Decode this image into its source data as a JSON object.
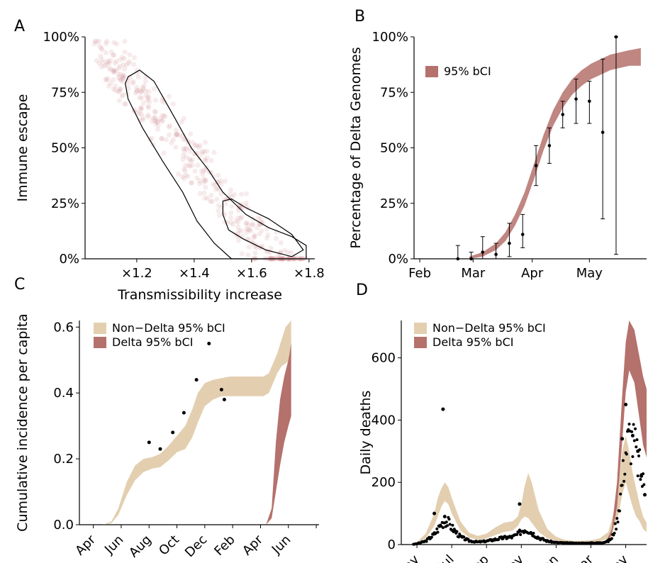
{
  "colors": {
    "delta": "#b5716c",
    "non_delta": "#e3cfb0",
    "points": "#000000",
    "scatter": "#c98088",
    "contour": "#000000"
  },
  "chart_data": [
    {
      "panel": "A",
      "type": "scatter",
      "xlabel": "Transmissibility increase",
      "ylabel": "Immune escape",
      "xlim": [
        1.02,
        1.82
      ],
      "ylim": [
        0,
        1
      ],
      "x_ticks": [
        1.2,
        1.4,
        1.6,
        1.8
      ],
      "x_tick_labels": [
        "×1.2",
        "×1.4",
        "×1.6",
        "×1.8"
      ],
      "y_ticks": [
        0,
        0.25,
        0.5,
        0.75,
        1
      ],
      "y_tick_labels": [
        "0%",
        "25%",
        "50%",
        "75%",
        "100%"
      ],
      "contour_outer": [
        [
          1.17,
          0.82
        ],
        [
          1.21,
          0.85
        ],
        [
          1.26,
          0.8
        ],
        [
          1.33,
          0.64
        ],
        [
          1.39,
          0.5
        ],
        [
          1.45,
          0.4
        ],
        [
          1.5,
          0.3
        ],
        [
          1.58,
          0.2
        ],
        [
          1.66,
          0.14
        ],
        [
          1.74,
          0.1
        ],
        [
          1.79,
          0.06
        ],
        [
          1.79,
          0.0
        ],
        [
          1.62,
          0.0
        ],
        [
          1.53,
          0.0
        ],
        [
          1.47,
          0.07
        ],
        [
          1.41,
          0.17
        ],
        [
          1.36,
          0.3
        ],
        [
          1.29,
          0.44
        ],
        [
          1.22,
          0.59
        ],
        [
          1.17,
          0.72
        ],
        [
          1.16,
          0.79
        ]
      ],
      "contour_inner": [
        [
          1.5,
          0.26
        ],
        [
          1.53,
          0.27
        ],
        [
          1.58,
          0.23
        ],
        [
          1.66,
          0.18
        ],
        [
          1.74,
          0.11
        ],
        [
          1.78,
          0.04
        ],
        [
          1.74,
          0.01
        ],
        [
          1.65,
          0.04
        ],
        [
          1.57,
          0.09
        ],
        [
          1.52,
          0.13
        ],
        [
          1.5,
          0.2
        ]
      ]
    },
    {
      "panel": "B",
      "type": "line",
      "xlabel": "",
      "ylabel": "Percentage of Delta Genomes",
      "xlim": [
        -3,
        119
      ],
      "ylim": [
        0,
        1
      ],
      "x_ticks": [
        0,
        28,
        59,
        89
      ],
      "x_tick_labels": [
        "Feb",
        "Mar",
        "Apr",
        "May"
      ],
      "y_ticks": [
        0,
        0.25,
        0.5,
        0.75,
        1
      ],
      "y_tick_labels": [
        "0%",
        "25%",
        "50%",
        "75%",
        "100%"
      ],
      "legend": [
        "95% bCI"
      ],
      "band_x": [
        26,
        33,
        40,
        45,
        50,
        55,
        60,
        65,
        70,
        75,
        80,
        85,
        90,
        95,
        100,
        105,
        110,
        116
      ],
      "band_lower": [
        0.0,
        0.01,
        0.04,
        0.08,
        0.15,
        0.24,
        0.36,
        0.49,
        0.6,
        0.68,
        0.74,
        0.78,
        0.81,
        0.83,
        0.85,
        0.86,
        0.87,
        0.87
      ],
      "band_upper": [
        0.01,
        0.03,
        0.07,
        0.12,
        0.2,
        0.3,
        0.43,
        0.56,
        0.67,
        0.75,
        0.81,
        0.85,
        0.88,
        0.9,
        0.92,
        0.93,
        0.94,
        0.95
      ],
      "points": [
        {
          "x": 20,
          "y": 0.0,
          "lo": 0.0,
          "hi": 0.06
        },
        {
          "x": 27,
          "y": 0.0,
          "lo": 0.0,
          "hi": 0.03
        },
        {
          "x": 33,
          "y": 0.03,
          "lo": 0.0,
          "hi": 0.1
        },
        {
          "x": 40,
          "y": 0.02,
          "lo": 0.0,
          "hi": 0.07
        },
        {
          "x": 47,
          "y": 0.07,
          "lo": 0.01,
          "hi": 0.16
        },
        {
          "x": 54,
          "y": 0.11,
          "lo": 0.05,
          "hi": 0.2
        },
        {
          "x": 61,
          "y": 0.42,
          "lo": 0.33,
          "hi": 0.51
        },
        {
          "x": 68,
          "y": 0.51,
          "lo": 0.43,
          "hi": 0.59
        },
        {
          "x": 75,
          "y": 0.65,
          "lo": 0.59,
          "hi": 0.71
        },
        {
          "x": 82,
          "y": 0.72,
          "lo": 0.61,
          "hi": 0.81
        },
        {
          "x": 89,
          "y": 0.71,
          "lo": 0.61,
          "hi": 0.8
        },
        {
          "x": 96,
          "y": 0.57,
          "lo": 0.18,
          "hi": 0.9
        },
        {
          "x": 103,
          "y": 1.0,
          "lo": 0.02,
          "hi": 1.0
        }
      ]
    },
    {
      "panel": "C",
      "type": "area",
      "xlabel": "",
      "ylabel": "Cumulative incidence per capita",
      "xlim": [
        -1,
        16.2
      ],
      "ylim": [
        0,
        0.62
      ],
      "x_ticks": [
        0,
        2,
        4,
        6,
        8,
        10,
        12,
        14,
        16
      ],
      "x_tick_labels": [
        "Apr",
        "Jun",
        "Aug",
        "Oct",
        "Dec",
        "Feb",
        "Apr",
        "Jun",
        ""
      ],
      "y_ticks": [
        0,
        0.2,
        0.4,
        0.6
      ],
      "y_tick_labels": [
        "0.0",
        "0.2",
        "0.4",
        "0.6"
      ],
      "legend": [
        "Non−Delta 95% bCI",
        "Delta 95% bCI"
      ],
      "nondelta_x": [
        0,
        0.7,
        1.3,
        1.8,
        2.4,
        3.0,
        3.6,
        4.2,
        4.8,
        5.4,
        6.0,
        6.6,
        7.1,
        7.5,
        8.0,
        8.6,
        9.2,
        9.8,
        10.4,
        11.0,
        11.6,
        12.2,
        12.6,
        12.9,
        13.2,
        13.5,
        13.8,
        14.2
      ],
      "nondelta_lower": [
        0.0,
        0.0,
        0.005,
        0.03,
        0.09,
        0.135,
        0.16,
        0.17,
        0.175,
        0.195,
        0.22,
        0.23,
        0.265,
        0.31,
        0.36,
        0.38,
        0.39,
        0.39,
        0.39,
        0.39,
        0.39,
        0.39,
        0.4,
        0.43,
        0.46,
        0.48,
        0.49,
        0.5
      ],
      "nondelta_upper": [
        0.0,
        0.0,
        0.01,
        0.05,
        0.13,
        0.18,
        0.2,
        0.205,
        0.215,
        0.24,
        0.27,
        0.3,
        0.35,
        0.4,
        0.43,
        0.44,
        0.445,
        0.45,
        0.45,
        0.45,
        0.45,
        0.45,
        0.46,
        0.49,
        0.52,
        0.56,
        0.6,
        0.62
      ],
      "delta_x": [
        12.4,
        12.8,
        13.1,
        13.4,
        13.7,
        14.0,
        14.2
      ],
      "delta_lower": [
        0.0,
        0.02,
        0.1,
        0.18,
        0.25,
        0.3,
        0.33
      ],
      "delta_upper": [
        0.0,
        0.05,
        0.25,
        0.38,
        0.45,
        0.5,
        0.55
      ],
      "points": [
        {
          "x": 4.0,
          "y": 0.25
        },
        {
          "x": 4.8,
          "y": 0.23
        },
        {
          "x": 5.7,
          "y": 0.28
        },
        {
          "x": 6.5,
          "y": 0.34
        },
        {
          "x": 7.4,
          "y": 0.44
        },
        {
          "x": 8.3,
          "y": 0.55
        },
        {
          "x": 9.2,
          "y": 0.41
        },
        {
          "x": 9.4,
          "y": 0.38
        }
      ]
    },
    {
      "panel": "D",
      "type": "area",
      "xlabel": "",
      "ylabel": "Daily deaths",
      "xlim": [
        -0.9,
        13.2
      ],
      "ylim": [
        0,
        720
      ],
      "x_ticks": [
        0,
        2,
        4,
        6,
        8,
        10,
        12
      ],
      "x_tick_labels": [
        "May",
        "Jul",
        "Sep",
        "Nov",
        "Jan",
        "Mar",
        "May"
      ],
      "y_ticks": [
        0,
        200,
        400,
        600
      ],
      "y_tick_labels": [
        "0",
        "200",
        "400",
        "600"
      ],
      "legend": [
        "Non−Delta 95% bCI",
        "Delta 95% bCI"
      ],
      "nondelta_x": [
        -0.3,
        0,
        0.5,
        1.0,
        1.2,
        1.4,
        1.6,
        1.8,
        2.0,
        2.5,
        3.0,
        3.5,
        4.0,
        4.5,
        5.0,
        5.5,
        5.8,
        6.0,
        6.2,
        6.4,
        6.6,
        7.0,
        7.5,
        8.0,
        8.5,
        9.0,
        9.5,
        10.0,
        10.5,
        11.0,
        11.3,
        11.6,
        11.8,
        12.0,
        12.2,
        12.4,
        12.6,
        12.8,
        13.0,
        13.2
      ],
      "nondelta_lower": [
        0,
        5,
        20,
        60,
        90,
        120,
        140,
        130,
        100,
        45,
        22,
        15,
        20,
        30,
        40,
        45,
        60,
        80,
        90,
        85,
        70,
        40,
        20,
        12,
        10,
        8,
        8,
        9,
        10,
        20,
        50,
        100,
        160,
        200,
        160,
        120,
        90,
        75,
        50,
        40
      ],
      "nondelta_upper": [
        0,
        8,
        35,
        100,
        150,
        180,
        200,
        185,
        150,
        75,
        38,
        28,
        35,
        55,
        70,
        75,
        90,
        130,
        190,
        230,
        200,
        110,
        50,
        25,
        15,
        12,
        12,
        14,
        20,
        40,
        100,
        200,
        300,
        350,
        300,
        230,
        180,
        130,
        90,
        70
      ],
      "delta_x": [
        10.8,
        11.2,
        11.5,
        11.8,
        12.0,
        12.2,
        12.5,
        12.8,
        13.0,
        13.2
      ],
      "delta_lower": [
        0,
        30,
        120,
        330,
        490,
        560,
        520,
        400,
        320,
        280
      ],
      "delta_upper": [
        0,
        50,
        200,
        480,
        650,
        720,
        690,
        600,
        540,
        500
      ],
      "points": [
        {
          "x": 1.5,
          "y": 435
        },
        {
          "x": 1.0,
          "y": 100
        },
        {
          "x": 1.6,
          "y": 90
        },
        {
          "x": 5.9,
          "y": 130
        },
        {
          "x": 11.8,
          "y": 340
        },
        {
          "x": 12.0,
          "y": 450
        },
        {
          "x": 12.4,
          "y": 350
        },
        {
          "x": 12.7,
          "y": 300
        },
        {
          "x": 12.9,
          "y": 220
        },
        {
          "x": 13.1,
          "y": 160
        }
      ]
    }
  ]
}
